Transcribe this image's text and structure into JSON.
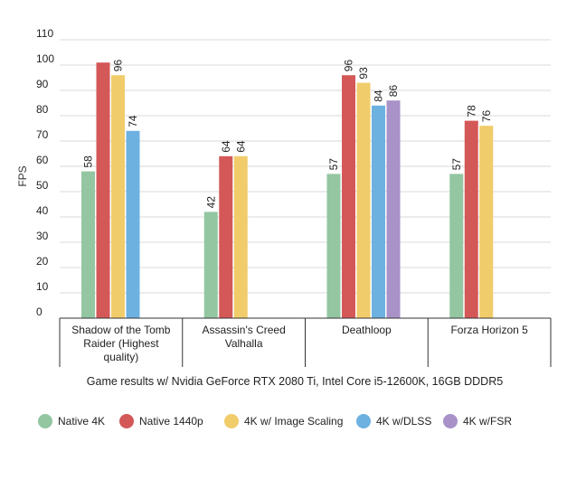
{
  "chart_data": {
    "type": "bar",
    "title": "",
    "xlabel": "Game results w/ Nvidia GeForce RTX 2080 Ti, Intel Core i5-12600K, 16GB DDDR5",
    "ylabel": "FPS",
    "ylim": [
      0,
      110
    ],
    "yticks": [
      0,
      10,
      20,
      30,
      40,
      50,
      60,
      70,
      80,
      90,
      100,
      110
    ],
    "grid": true,
    "legend_position": "bottom",
    "categories": [
      [
        "Shadow of the Tomb",
        "Raider (Highest",
        "quality)"
      ],
      [
        "Assassin's Creed",
        "Valhalla"
      ],
      [
        "Deathloop"
      ],
      [
        "Forza Horizon 5"
      ]
    ],
    "series": [
      {
        "name": "Native 4K",
        "color": "#93c6a1",
        "values": [
          58,
          42,
          57,
          57
        ],
        "labels": [
          "58",
          "42",
          "57",
          "57"
        ]
      },
      {
        "name": "Native 1440p",
        "color": "#d45858",
        "values": [
          101,
          64,
          96,
          78
        ],
        "labels": [
          "",
          "64",
          "96",
          "78"
        ]
      },
      {
        "name": "4K w/ Image Scaling",
        "color": "#f1cc6b",
        "values": [
          96,
          64,
          93,
          76
        ],
        "labels": [
          "96",
          "64",
          "93",
          "76"
        ]
      },
      {
        "name": "4K w/DLSS",
        "color": "#6db1e1",
        "values": [
          74,
          null,
          84,
          null
        ],
        "labels": [
          "74",
          "",
          "84",
          ""
        ]
      },
      {
        "name": "4K w/FSR",
        "color": "#a892c8",
        "values": [
          null,
          null,
          86,
          null
        ],
        "labels": [
          "",
          "",
          "86",
          ""
        ]
      }
    ]
  }
}
